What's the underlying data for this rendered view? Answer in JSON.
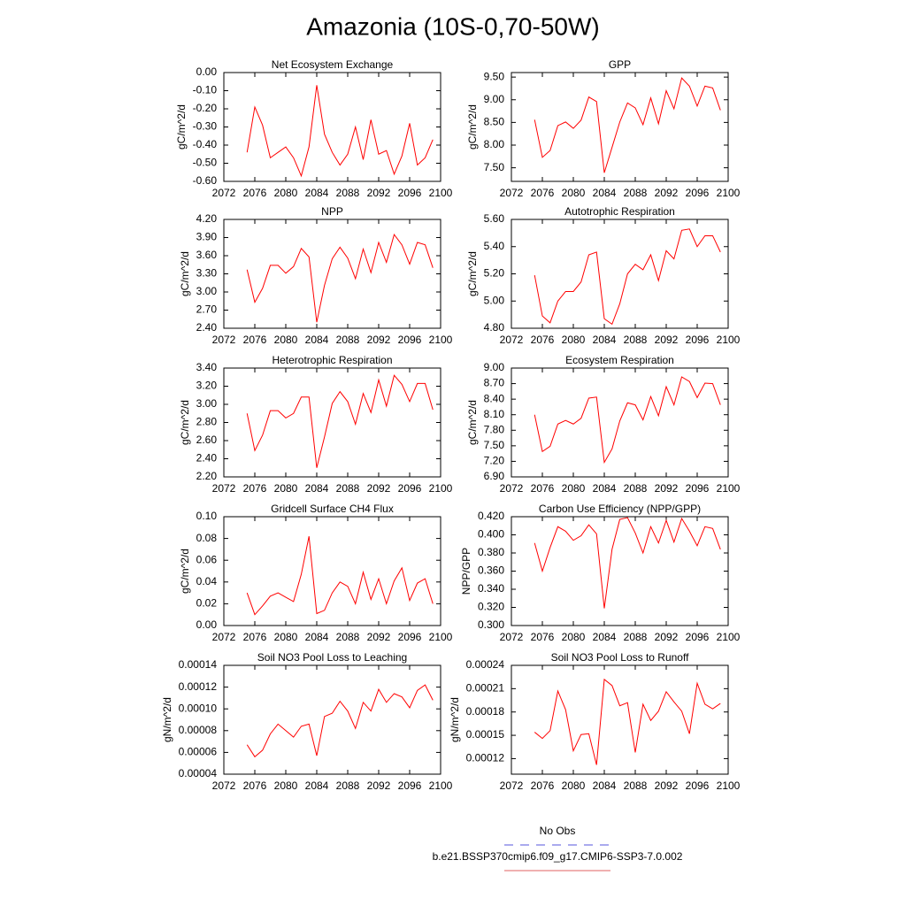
{
  "title": "Amazonia (10S-0,70-50W)",
  "legend": [
    {
      "name": "No Obs",
      "color": "#5555dd",
      "dashed": true
    },
    {
      "name": "b.e21.BSSP370cmip6.f09_g17.CMIP6-SSP3-7.0.002",
      "color": "#e06060",
      "dashed": false
    }
  ],
  "chart_data": [
    {
      "type": "line",
      "title": "Net Ecosystem Exchange",
      "ylabel": "gC/m^2/d",
      "color": "#ff0000",
      "x": [
        2075,
        2076,
        2077,
        2078,
        2079,
        2080,
        2081,
        2082,
        2083,
        2084,
        2085,
        2086,
        2087,
        2088,
        2089,
        2090,
        2091,
        2092,
        2093,
        2094,
        2095,
        2096,
        2097,
        2098,
        2099
      ],
      "values": [
        -0.44,
        -0.19,
        -0.29,
        -0.47,
        -0.44,
        -0.41,
        -0.47,
        -0.57,
        -0.41,
        -0.07,
        -0.34,
        -0.44,
        -0.51,
        -0.45,
        -0.3,
        -0.48,
        -0.26,
        -0.45,
        -0.43,
        -0.56,
        -0.46,
        -0.28,
        -0.51,
        -0.47,
        -0.37
      ],
      "xlim": [
        2072,
        2100
      ],
      "xticks": [
        2072,
        2076,
        2080,
        2084,
        2088,
        2092,
        2096,
        2100
      ],
      "ylim": [
        -0.6,
        0
      ],
      "yticks": [
        {
          "value": -0.6,
          "label": "-0.60"
        },
        {
          "value": -0.5,
          "label": "-0.50"
        },
        {
          "value": -0.4,
          "label": "-0.40"
        },
        {
          "value": -0.3,
          "label": "-0.30"
        },
        {
          "value": -0.2,
          "label": "-0.20"
        },
        {
          "value": -0.1,
          "label": "-0.10"
        },
        {
          "value": 0,
          "label": "0.00"
        }
      ]
    },
    {
      "type": "line",
      "title": "GPP",
      "ylabel": "gC/m^2/d",
      "color": "#ff0000",
      "x": [
        2075,
        2076,
        2077,
        2078,
        2079,
        2080,
        2081,
        2082,
        2083,
        2084,
        2085,
        2086,
        2087,
        2088,
        2089,
        2090,
        2091,
        2092,
        2093,
        2094,
        2095,
        2096,
        2097,
        2098,
        2099
      ],
      "values": [
        8.56,
        7.73,
        7.88,
        8.43,
        8.51,
        8.37,
        8.55,
        9.06,
        8.96,
        7.39,
        7.95,
        8.51,
        8.93,
        8.82,
        8.45,
        9.04,
        8.47,
        9.2,
        8.8,
        9.48,
        9.3,
        8.86,
        9.3,
        9.26,
        8.77
      ],
      "xlim": [
        2072,
        2100
      ],
      "xticks": [
        2072,
        2076,
        2080,
        2084,
        2088,
        2092,
        2096,
        2100
      ],
      "ylim": [
        7.2,
        9.6
      ],
      "yticks": [
        {
          "value": 7.5,
          "label": "7.50"
        },
        {
          "value": 8,
          "label": "8.00"
        },
        {
          "value": 8.5,
          "label": "8.50"
        },
        {
          "value": 9,
          "label": "9.00"
        },
        {
          "value": 9.5,
          "label": "9.50"
        }
      ]
    },
    {
      "type": "line",
      "title": "NPP",
      "ylabel": "gC/m^2/d",
      "color": "#ff0000",
      "x": [
        2075,
        2076,
        2077,
        2078,
        2079,
        2080,
        2081,
        2082,
        2083,
        2084,
        2085,
        2086,
        2087,
        2088,
        2089,
        2090,
        2091,
        2092,
        2093,
        2094,
        2095,
        2096,
        2097,
        2098,
        2099
      ],
      "values": [
        3.37,
        2.83,
        3.06,
        3.44,
        3.44,
        3.31,
        3.42,
        3.72,
        3.58,
        2.5,
        3.11,
        3.55,
        3.74,
        3.56,
        3.22,
        3.71,
        3.32,
        3.82,
        3.49,
        3.95,
        3.78,
        3.46,
        3.82,
        3.78,
        3.4
      ],
      "xlim": [
        2072,
        2100
      ],
      "xticks": [
        2072,
        2076,
        2080,
        2084,
        2088,
        2092,
        2096,
        2100
      ],
      "ylim": [
        2.4,
        4.2
      ],
      "yticks": [
        {
          "value": 2.4,
          "label": "2.40"
        },
        {
          "value": 2.7,
          "label": "2.70"
        },
        {
          "value": 3,
          "label": "3.00"
        },
        {
          "value": 3.3,
          "label": "3.30"
        },
        {
          "value": 3.6,
          "label": "3.60"
        },
        {
          "value": 3.9,
          "label": "3.90"
        },
        {
          "value": 4.2,
          "label": "4.20"
        }
      ]
    },
    {
      "type": "line",
      "title": "Autotrophic Respiration",
      "ylabel": "gC/m^2/d",
      "color": "#ff0000",
      "x": [
        2075,
        2076,
        2077,
        2078,
        2079,
        2080,
        2081,
        2082,
        2083,
        2084,
        2085,
        2086,
        2087,
        2088,
        2089,
        2090,
        2091,
        2092,
        2093,
        2094,
        2095,
        2096,
        2097,
        2098,
        2099
      ],
      "values": [
        5.19,
        4.89,
        4.84,
        5.0,
        5.07,
        5.07,
        5.14,
        5.34,
        5.36,
        4.87,
        4.83,
        4.98,
        5.2,
        5.27,
        5.23,
        5.34,
        5.15,
        5.37,
        5.31,
        5.52,
        5.53,
        5.4,
        5.48,
        5.48,
        5.36
      ],
      "xlim": [
        2072,
        2100
      ],
      "xticks": [
        2072,
        2076,
        2080,
        2084,
        2088,
        2092,
        2096,
        2100
      ],
      "ylim": [
        4.8,
        5.6
      ],
      "yticks": [
        {
          "value": 4.8,
          "label": "4.80"
        },
        {
          "value": 5,
          "label": "5.00"
        },
        {
          "value": 5.2,
          "label": "5.20"
        },
        {
          "value": 5.4,
          "label": "5.40"
        },
        {
          "value": 5.6,
          "label": "5.60"
        }
      ]
    },
    {
      "type": "line",
      "title": "Heterotrophic Respiration",
      "ylabel": "gC/m^2/d",
      "color": "#ff0000",
      "x": [
        2075,
        2076,
        2077,
        2078,
        2079,
        2080,
        2081,
        2082,
        2083,
        2084,
        2085,
        2086,
        2087,
        2088,
        2089,
        2090,
        2091,
        2092,
        2093,
        2094,
        2095,
        2096,
        2097,
        2098,
        2099
      ],
      "values": [
        2.9,
        2.49,
        2.66,
        2.93,
        2.93,
        2.85,
        2.9,
        3.08,
        3.08,
        2.3,
        2.64,
        3.01,
        3.14,
        3.03,
        2.78,
        3.12,
        2.91,
        3.27,
        2.98,
        3.32,
        3.22,
        3.03,
        3.23,
        3.23,
        2.94
      ],
      "xlim": [
        2072,
        2100
      ],
      "xticks": [
        2072,
        2076,
        2080,
        2084,
        2088,
        2092,
        2096,
        2100
      ],
      "ylim": [
        2.2,
        3.4
      ],
      "yticks": [
        {
          "value": 2.2,
          "label": "2.20"
        },
        {
          "value": 2.4,
          "label": "2.40"
        },
        {
          "value": 2.6,
          "label": "2.60"
        },
        {
          "value": 2.8,
          "label": "2.80"
        },
        {
          "value": 3,
          "label": "3.00"
        },
        {
          "value": 3.2,
          "label": "3.20"
        },
        {
          "value": 3.4,
          "label": "3.40"
        }
      ]
    },
    {
      "type": "line",
      "title": "Ecosystem Respiration",
      "ylabel": "gC/m^2/d",
      "color": "#ff0000",
      "x": [
        2075,
        2076,
        2077,
        2078,
        2079,
        2080,
        2081,
        2082,
        2083,
        2084,
        2085,
        2086,
        2087,
        2088,
        2089,
        2090,
        2091,
        2092,
        2093,
        2094,
        2095,
        2096,
        2097,
        2098,
        2099
      ],
      "values": [
        8.1,
        7.39,
        7.49,
        7.92,
        7.99,
        7.92,
        8.03,
        8.42,
        8.44,
        7.18,
        7.44,
        7.98,
        8.33,
        8.29,
        8.0,
        8.45,
        8.08,
        8.64,
        8.29,
        8.83,
        8.74,
        8.43,
        8.71,
        8.7,
        8.29
      ],
      "xlim": [
        2072,
        2100
      ],
      "xticks": [
        2072,
        2076,
        2080,
        2084,
        2088,
        2092,
        2096,
        2100
      ],
      "ylim": [
        6.9,
        9.0
      ],
      "yticks": [
        {
          "value": 6.9,
          "label": "6.90"
        },
        {
          "value": 7.2,
          "label": "7.20"
        },
        {
          "value": 7.5,
          "label": "7.50"
        },
        {
          "value": 7.8,
          "label": "7.80"
        },
        {
          "value": 8.1,
          "label": "8.10"
        },
        {
          "value": 8.4,
          "label": "8.40"
        },
        {
          "value": 8.7,
          "label": "8.70"
        },
        {
          "value": 9,
          "label": "9.00"
        }
      ]
    },
    {
      "type": "line",
      "title": "Gridcell Surface CH4 Flux",
      "ylabel": "gC/m^2/d",
      "color": "#ff0000",
      "x": [
        2075,
        2076,
        2077,
        2078,
        2079,
        2080,
        2081,
        2082,
        2083,
        2084,
        2085,
        2086,
        2087,
        2088,
        2089,
        2090,
        2091,
        2092,
        2093,
        2094,
        2095,
        2096,
        2097,
        2098,
        2099
      ],
      "values": [
        0.03,
        0.01,
        0.018,
        0.027,
        0.03,
        0.026,
        0.022,
        0.047,
        0.082,
        0.011,
        0.014,
        0.03,
        0.04,
        0.036,
        0.02,
        0.049,
        0.024,
        0.043,
        0.02,
        0.041,
        0.053,
        0.023,
        0.039,
        0.043,
        0.02
      ],
      "xlim": [
        2072,
        2100
      ],
      "xticks": [
        2072,
        2076,
        2080,
        2084,
        2088,
        2092,
        2096,
        2100
      ],
      "ylim": [
        0,
        0.1
      ],
      "yticks": [
        {
          "value": 0,
          "label": "0.00"
        },
        {
          "value": 0.02,
          "label": "0.02"
        },
        {
          "value": 0.04,
          "label": "0.04"
        },
        {
          "value": 0.06,
          "label": "0.06"
        },
        {
          "value": 0.08,
          "label": "0.08"
        },
        {
          "value": 0.1,
          "label": "0.10"
        }
      ]
    },
    {
      "type": "line",
      "title": "Carbon Use Efficiency (NPP/GPP)",
      "ylabel": "NPP/GPP",
      "color": "#ff0000",
      "x": [
        2075,
        2076,
        2077,
        2078,
        2079,
        2080,
        2081,
        2082,
        2083,
        2084,
        2085,
        2086,
        2087,
        2088,
        2089,
        2090,
        2091,
        2092,
        2093,
        2094,
        2095,
        2096,
        2097,
        2098,
        2099
      ],
      "values": [
        0.391,
        0.36,
        0.386,
        0.409,
        0.404,
        0.394,
        0.399,
        0.411,
        0.401,
        0.319,
        0.384,
        0.417,
        0.419,
        0.402,
        0.38,
        0.409,
        0.391,
        0.416,
        0.392,
        0.418,
        0.404,
        0.388,
        0.409,
        0.407,
        0.384
      ],
      "xlim": [
        2072,
        2100
      ],
      "xticks": [
        2072,
        2076,
        2080,
        2084,
        2088,
        2092,
        2096,
        2100
      ],
      "ylim": [
        0.3,
        0.42
      ],
      "yticks": [
        {
          "value": 0.3,
          "label": "0.300"
        },
        {
          "value": 0.32,
          "label": "0.320"
        },
        {
          "value": 0.34,
          "label": "0.340"
        },
        {
          "value": 0.36,
          "label": "0.360"
        },
        {
          "value": 0.38,
          "label": "0.380"
        },
        {
          "value": 0.4,
          "label": "0.400"
        },
        {
          "value": 0.42,
          "label": "0.420"
        }
      ]
    },
    {
      "type": "line",
      "title": "Soil NO3 Pool Loss to Leaching",
      "ylabel": "gN/m^2/d",
      "color": "#ff0000",
      "x": [
        2075,
        2076,
        2077,
        2078,
        2079,
        2080,
        2081,
        2082,
        2083,
        2084,
        2085,
        2086,
        2087,
        2088,
        2089,
        2090,
        2091,
        2092,
        2093,
        2094,
        2095,
        2096,
        2097,
        2098,
        2099
      ],
      "values": [
        6.7e-05,
        5.6e-05,
        6.2e-05,
        7.7e-05,
        8.6e-05,
        8e-05,
        7.4e-05,
        8.4e-05,
        8.6e-05,
        5.7e-05,
        9.3e-05,
        9.6e-05,
        0.000107,
        9.8e-05,
        8.2e-05,
        0.000106,
        9.8e-05,
        0.000118,
        0.000106,
        0.000114,
        0.000111,
        0.000101,
        0.000117,
        0.000122,
        0.000108
      ],
      "xlim": [
        2072,
        2100
      ],
      "xticks": [
        2072,
        2076,
        2080,
        2084,
        2088,
        2092,
        2096,
        2100
      ],
      "ylim": [
        4e-05,
        0.00014
      ],
      "yticks": [
        {
          "value": 4e-05,
          "label": "0.00004"
        },
        {
          "value": 6e-05,
          "label": "0.00006"
        },
        {
          "value": 8e-05,
          "label": "0.00008"
        },
        {
          "value": 0.0001,
          "label": "0.00010"
        },
        {
          "value": 0.00012,
          "label": "0.00012"
        },
        {
          "value": 0.00014,
          "label": "0.00014"
        }
      ]
    },
    {
      "type": "line",
      "title": "Soil NO3 Pool Loss to Runoff",
      "ylabel": "gN/m^2/d",
      "color": "#ff0000",
      "x": [
        2075,
        2076,
        2077,
        2078,
        2079,
        2080,
        2081,
        2082,
        2083,
        2084,
        2085,
        2086,
        2087,
        2088,
        2089,
        2090,
        2091,
        2092,
        2093,
        2094,
        2095,
        2096,
        2097,
        2098,
        2099
      ],
      "values": [
        0.000154,
        0.000146,
        0.000156,
        0.000207,
        0.000183,
        0.00013,
        0.000151,
        0.000152,
        0.000112,
        0.000222,
        0.000214,
        0.000188,
        0.000192,
        0.000128,
        0.00019,
        0.000169,
        0.000181,
        0.000206,
        0.000193,
        0.000181,
        0.000152,
        0.000217,
        0.00019,
        0.000184,
        0.000191
      ],
      "xlim": [
        2072,
        2100
      ],
      "xticks": [
        2072,
        2076,
        2080,
        2084,
        2088,
        2092,
        2096,
        2100
      ],
      "ylim": [
        0.0001,
        0.00024
      ],
      "yticks": [
        {
          "value": 0.00012,
          "label": "0.00012"
        },
        {
          "value": 0.00015,
          "label": "0.00015"
        },
        {
          "value": 0.00018,
          "label": "0.00018"
        },
        {
          "value": 0.00021,
          "label": "0.00021"
        },
        {
          "value": 0.00024,
          "label": "0.00024"
        }
      ]
    }
  ]
}
